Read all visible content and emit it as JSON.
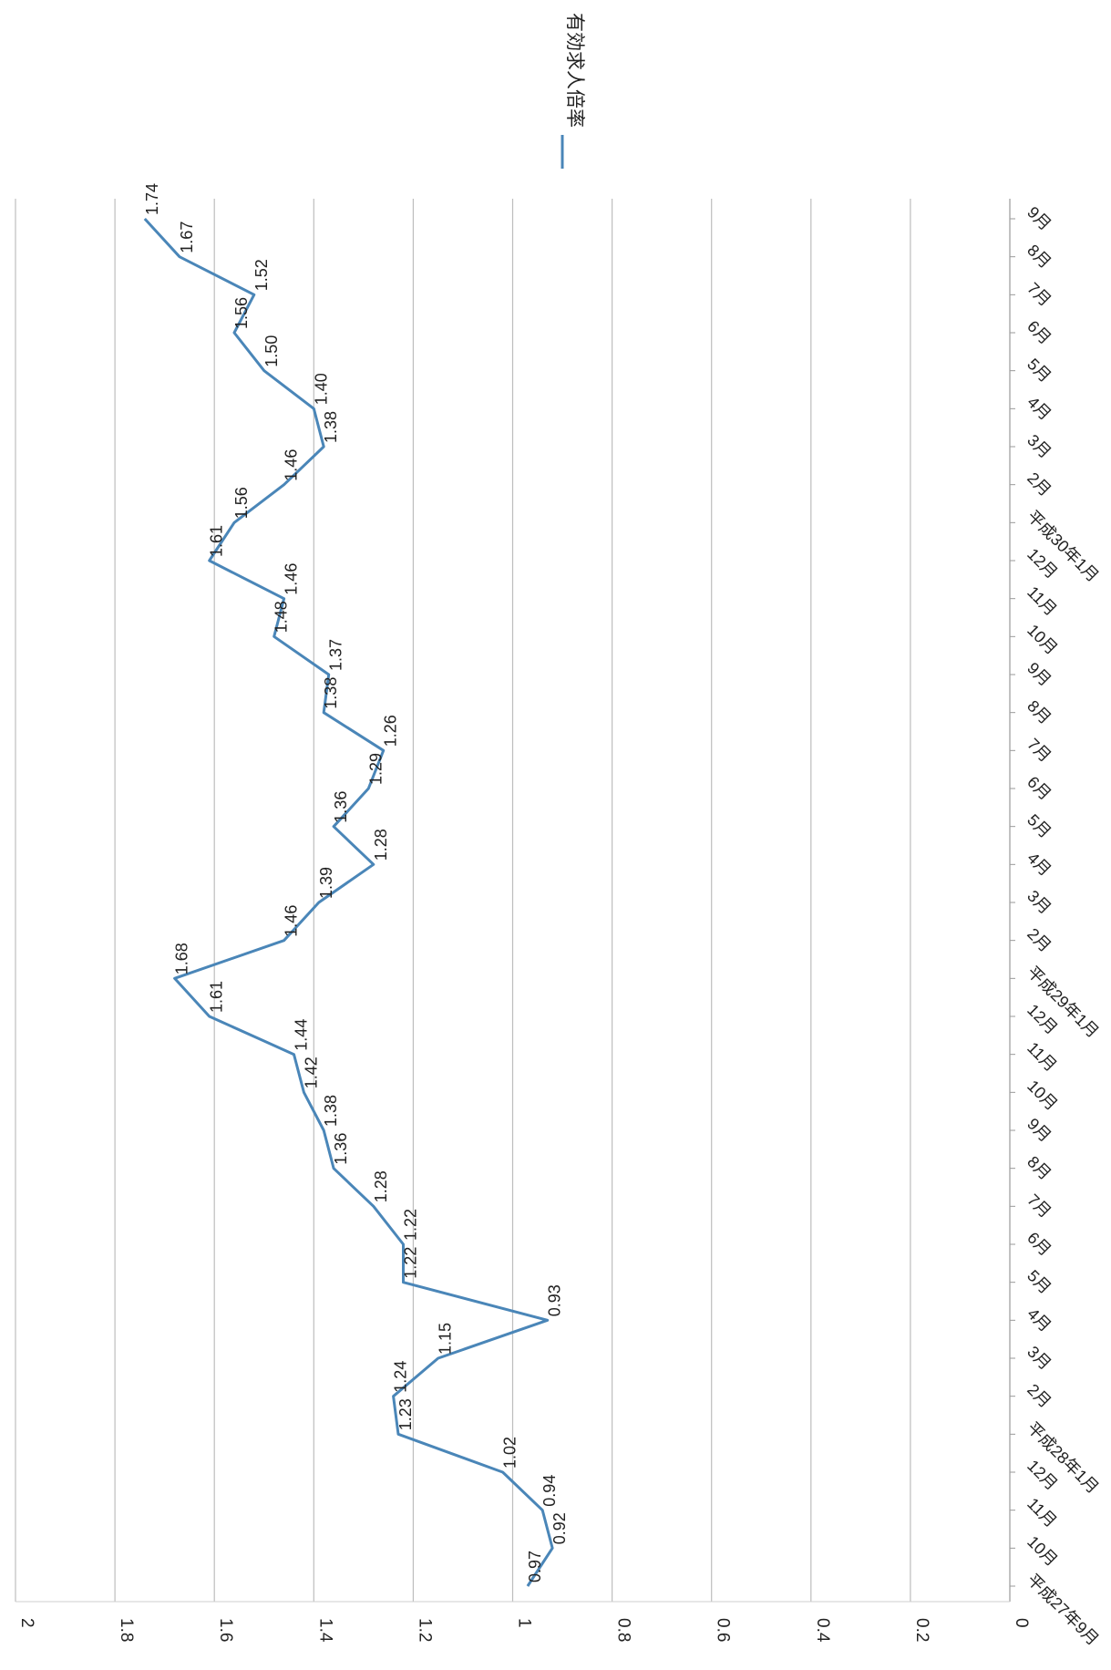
{
  "chart_data": {
    "type": "line",
    "orientation": "rotated-90-clockwise",
    "title": "",
    "xlabel": "",
    "ylabel": "",
    "ylim": [
      0,
      2
    ],
    "yticks": [
      "0",
      "0.2",
      "0.4",
      "0.6",
      "0.8",
      "1",
      "1.2",
      "1.4",
      "1.6",
      "1.8",
      "2"
    ],
    "grid": true,
    "legend": {
      "placement": "top-right",
      "entries": [
        "有効求人倍率"
      ]
    },
    "categories": [
      "平成27年9月",
      "10月",
      "11月",
      "12月",
      "平成28年1月",
      "2月",
      "3月",
      "4月",
      "5月",
      "6月",
      "7月",
      "8月",
      "9月",
      "10月",
      "11月",
      "12月",
      "平成29年1月",
      "2月",
      "3月",
      "4月",
      "5月",
      "6月",
      "7月",
      "8月",
      "9月",
      "10月",
      "11月",
      "12月",
      "平成30年1月",
      "2月",
      "3月",
      "4月",
      "5月",
      "6月",
      "7月",
      "8月",
      "9月"
    ],
    "series": [
      {
        "name": "有効求人倍率",
        "color": "#4a86b8",
        "values": [
          0.97,
          0.92,
          0.94,
          1.02,
          1.23,
          1.24,
          1.15,
          0.93,
          1.22,
          1.22,
          1.28,
          1.36,
          1.38,
          1.42,
          1.44,
          1.61,
          1.68,
          1.46,
          1.39,
          1.28,
          1.36,
          1.29,
          1.26,
          1.38,
          1.37,
          1.48,
          1.46,
          1.61,
          1.56,
          1.46,
          1.38,
          1.4,
          1.5,
          1.56,
          1.52,
          1.67,
          1.74
        ],
        "labels": [
          "0.97",
          "0.92",
          "0.94",
          "1.02",
          "1.23",
          "1.24",
          "1.15",
          "0.93",
          "1.22",
          "1.22",
          "1.28",
          "1.36",
          "1.38",
          "1.42",
          "1.44",
          "1.61",
          "1.68",
          "1.46",
          "1.39",
          "1.28",
          "1.36",
          "1.29",
          "1.26",
          "1.38",
          "1.37",
          "1.48",
          "1.46",
          "1.61",
          "1.56",
          "1.46",
          "1.38",
          "1.40",
          "1.50",
          "1.56",
          "1.52",
          "1.67",
          "1.74"
        ]
      }
    ]
  }
}
